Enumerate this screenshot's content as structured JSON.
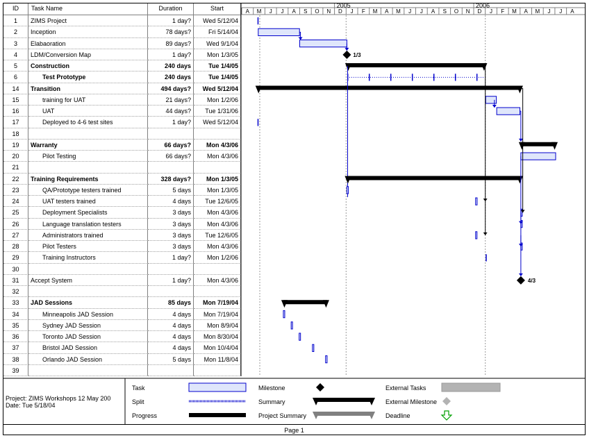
{
  "columns": {
    "id": "ID",
    "name": "Task Name",
    "duration": "Duration",
    "start": "Start"
  },
  "timescale": {
    "years": [
      {
        "label": "2005",
        "start_month": 8
      },
      {
        "label": "2006",
        "start_month": 20
      }
    ],
    "months": [
      "A",
      "M",
      "J",
      "J",
      "A",
      "S",
      "O",
      "N",
      "D",
      "J",
      "F",
      "M",
      "A",
      "M",
      "J",
      "J",
      "A",
      "S",
      "O",
      "N",
      "D",
      "J",
      "F",
      "M",
      "A",
      "M",
      "J",
      "J",
      "A"
    ]
  },
  "tasks": [
    {
      "id": "1",
      "name": "ZIMS Project",
      "duration": "1 day?",
      "start": "Wed 5/12/04",
      "indent": 0,
      "bold": false
    },
    {
      "id": "2",
      "name": "Inception",
      "duration": "78 days?",
      "start": "Fri 5/14/04",
      "indent": 0,
      "bold": false
    },
    {
      "id": "3",
      "name": "Elabaoration",
      "duration": "89 days?",
      "start": "Wed 9/1/04",
      "indent": 0,
      "bold": false
    },
    {
      "id": "4",
      "name": " LDM/Conversion Map",
      "duration": "1 day?",
      "start": "Mon 1/3/05",
      "indent": 0,
      "bold": false
    },
    {
      "id": "5",
      "name": "Construction",
      "duration": "240 days",
      "start": "Tue 1/4/05",
      "indent": 0,
      "bold": true
    },
    {
      "id": "6",
      "name": "Test Prototype",
      "duration": "240 days",
      "start": "Tue 1/4/05",
      "indent": 1,
      "bold": true
    },
    {
      "id": "14",
      "name": "Transition",
      "duration": "494 days?",
      "start": "Wed 5/12/04",
      "indent": 0,
      "bold": true
    },
    {
      "id": "15",
      "name": "training for UAT",
      "duration": "21 days?",
      "start": "Mon 1/2/06",
      "indent": 1,
      "bold": false
    },
    {
      "id": "16",
      "name": "UAT",
      "duration": "44 days?",
      "start": "Tue 1/31/06",
      "indent": 1,
      "bold": false
    },
    {
      "id": "17",
      "name": "Deployed to 4-6 test sites",
      "duration": "1 day?",
      "start": "Wed 5/12/04",
      "indent": 1,
      "bold": false
    },
    {
      "id": "18",
      "name": "",
      "duration": "",
      "start": "",
      "indent": 0,
      "bold": false
    },
    {
      "id": "19",
      "name": "Warranty",
      "duration": "66 days?",
      "start": "Mon 4/3/06",
      "indent": 0,
      "bold": true
    },
    {
      "id": "20",
      "name": "Pilot Testing",
      "duration": "66 days?",
      "start": "Mon 4/3/06",
      "indent": 1,
      "bold": false
    },
    {
      "id": "21",
      "name": "",
      "duration": "",
      "start": "",
      "indent": 0,
      "bold": false
    },
    {
      "id": "22",
      "name": "Training Requirements",
      "duration": "328 days?",
      "start": "Mon 1/3/05",
      "indent": 0,
      "bold": true
    },
    {
      "id": "23",
      "name": "QA/Prototype testers trained",
      "duration": "5 days",
      "start": "Mon 1/3/05",
      "indent": 1,
      "bold": false
    },
    {
      "id": "24",
      "name": "UAT testers trained",
      "duration": "4 days",
      "start": "Tue 12/6/05",
      "indent": 1,
      "bold": false
    },
    {
      "id": "25",
      "name": "Deployment Specialists",
      "duration": "3 days",
      "start": "Mon 4/3/06",
      "indent": 1,
      "bold": false
    },
    {
      "id": "26",
      "name": "Language translation testers",
      "duration": "3 days",
      "start": "Mon 4/3/06",
      "indent": 1,
      "bold": false
    },
    {
      "id": "27",
      "name": "Administrators trained",
      "duration": "3 days",
      "start": "Tue 12/6/05",
      "indent": 1,
      "bold": false
    },
    {
      "id": "28",
      "name": "Pilot Testers",
      "duration": "3 days",
      "start": "Mon 4/3/06",
      "indent": 1,
      "bold": false
    },
    {
      "id": "29",
      "name": "Training Instructors",
      "duration": "1 day?",
      "start": "Mon 1/2/06",
      "indent": 1,
      "bold": false
    },
    {
      "id": "30",
      "name": "",
      "duration": "",
      "start": "",
      "indent": 0,
      "bold": false
    },
    {
      "id": "31",
      "name": "Accept System",
      "duration": "1 day?",
      "start": "Mon 4/3/06",
      "indent": 0,
      "bold": false
    },
    {
      "id": "32",
      "name": "",
      "duration": "",
      "start": "",
      "indent": 0,
      "bold": false
    },
    {
      "id": "33",
      "name": "JAD Sessions",
      "duration": "85 days",
      "start": "Mon 7/19/04",
      "indent": 0,
      "bold": true
    },
    {
      "id": "34",
      "name": "Minneapolis JAD Session",
      "duration": "4 days",
      "start": "Mon 7/19/04",
      "indent": 1,
      "bold": false
    },
    {
      "id": "35",
      "name": "Sydney JAD Session",
      "duration": "4 days",
      "start": "Mon 8/9/04",
      "indent": 1,
      "bold": false
    },
    {
      "id": "36",
      "name": "Toronto JAD Session",
      "duration": "4 days",
      "start": "Mon 8/30/04",
      "indent": 1,
      "bold": false
    },
    {
      "id": "37",
      "name": "Bristol JAD Session",
      "duration": "4 days",
      "start": "Mon 10/4/04",
      "indent": 1,
      "bold": false
    },
    {
      "id": "38",
      "name": "Orlando JAD Session",
      "duration": "5 days",
      "start": "Mon 11/8/04",
      "indent": 1,
      "bold": false
    },
    {
      "id": "39",
      "name": "",
      "duration": "",
      "start": "",
      "indent": 0,
      "bold": false
    }
  ],
  "milestone_labels": {
    "ldm": "1/3",
    "accept": "4/3"
  },
  "legend": {
    "project_line1": "Project: ZIMS Workshops 12 May 200",
    "project_line2": "Date: Tue 5/18/04",
    "task": "Task",
    "split": "Split",
    "progress": "Progress",
    "milestone": "Milestone",
    "summary": "Summary",
    "project_summary": "Project Summary",
    "external_tasks": "External Tasks",
    "external_milestone": "External Milestone",
    "deadline": "Deadline"
  },
  "footer": {
    "page": "Page 1"
  },
  "colors": {
    "task_fill": "#dfe6fb",
    "task_border": "#0000cc",
    "summary": "#000000",
    "link": "#0000cc",
    "external": "#b3b3b3",
    "deadline": "#00a000"
  }
}
